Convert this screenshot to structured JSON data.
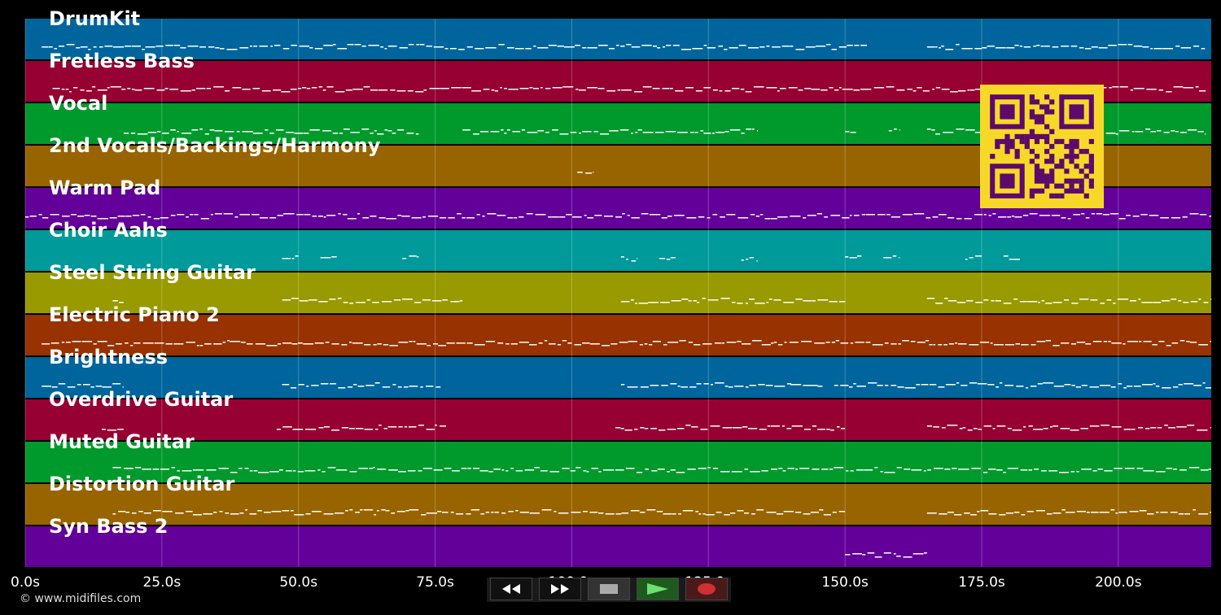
{
  "colors": {
    "background": "#000000",
    "track_colors": [
      "#00659c",
      "#970032",
      "#009a2c",
      "#986400",
      "#63009a",
      "#009a9a",
      "#999900",
      "#983200"
    ],
    "notes": "#ffffff",
    "qr_background": "#f7d829",
    "qr_modules": "#5c0a6b"
  },
  "tracks": [
    {
      "name": "DrumKit"
    },
    {
      "name": "Fretless Bass"
    },
    {
      "name": "Vocal"
    },
    {
      "name": "2nd Vocals/Backings/Harmony"
    },
    {
      "name": "Warm Pad"
    },
    {
      "name": "Choir Aahs"
    },
    {
      "name": "Steel String Guitar"
    },
    {
      "name": "Electric Piano 2"
    },
    {
      "name": "Brightness"
    },
    {
      "name": "Overdrive Guitar"
    },
    {
      "name": "Muted Guitar"
    },
    {
      "name": "Distortion Guitar"
    },
    {
      "name": "Syn Bass 2"
    }
  ],
  "timeline": {
    "unit": "s",
    "range": [
      0,
      217
    ],
    "ticks": [
      {
        "value": 0,
        "label": "0.0s"
      },
      {
        "value": 25,
        "label": "25.0s"
      },
      {
        "value": 50,
        "label": "50.0s"
      },
      {
        "value": 75,
        "label": "75.0s"
      },
      {
        "value": 100,
        "label": "100.0s"
      },
      {
        "value": 125,
        "label": "125.0s"
      },
      {
        "value": 150,
        "label": "150.0s"
      },
      {
        "value": 175,
        "label": "175.0s"
      },
      {
        "value": 200,
        "label": "200.0s"
      }
    ]
  },
  "note_segments": [
    [
      [
        3,
        154
      ],
      [
        165,
        216
      ]
    ],
    [
      [
        5,
        216
      ]
    ],
    [
      [
        18,
        72
      ],
      [
        80,
        134
      ],
      [
        150,
        152
      ],
      [
        158,
        160
      ],
      [
        165,
        216
      ]
    ],
    [
      [
        101,
        104
      ]
    ],
    [
      [
        0,
        217
      ]
    ],
    [
      [
        47,
        50
      ],
      [
        54,
        57
      ],
      [
        69,
        72
      ],
      [
        109,
        112
      ],
      [
        116,
        119
      ],
      [
        131,
        134
      ],
      [
        150,
        153
      ],
      [
        157,
        160
      ],
      [
        172,
        175
      ],
      [
        179,
        182
      ]
    ],
    [
      [
        16,
        18
      ],
      [
        47,
        80
      ],
      [
        109,
        150
      ],
      [
        165,
        217
      ]
    ],
    [
      [
        3,
        217
      ]
    ],
    [
      [
        3,
        18
      ],
      [
        47,
        76
      ],
      [
        109,
        145
      ],
      [
        140,
        146
      ],
      [
        148,
        217
      ]
    ],
    [
      [
        14,
        18
      ],
      [
        46,
        77
      ],
      [
        108,
        150
      ],
      [
        165,
        217
      ]
    ],
    [
      [
        16,
        217
      ]
    ],
    [
      [
        16,
        150
      ],
      [
        165,
        217
      ]
    ],
    [
      [
        150,
        165
      ]
    ]
  ],
  "transport": {
    "buttons": [
      {
        "name": "rewind-button",
        "icon": "rewind-icon"
      },
      {
        "name": "fast-forward-button",
        "icon": "fast-forward-icon"
      },
      {
        "name": "stop-button",
        "icon": "stop-icon"
      },
      {
        "name": "play-button",
        "icon": "play-icon"
      },
      {
        "name": "record-button",
        "icon": "record-icon"
      }
    ]
  },
  "copyright": "© www.midifiles.com"
}
